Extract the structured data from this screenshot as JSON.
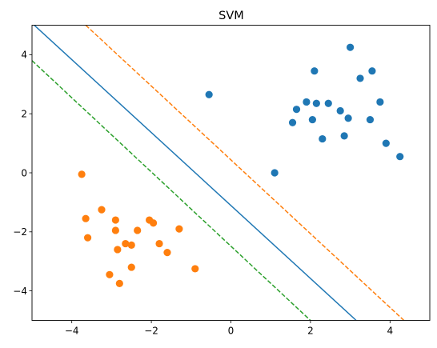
{
  "chart_data": {
    "type": "scatter",
    "title": "SVM",
    "xlabel": "",
    "ylabel": "",
    "xlim": [
      -5,
      5
    ],
    "ylim": [
      -5,
      5
    ],
    "xticks": [
      -4,
      -2,
      0,
      2,
      4
    ],
    "yticks": [
      -4,
      -2,
      0,
      2,
      4
    ],
    "x_tick_labels": [
      "−4",
      "−2",
      "0",
      "2",
      "4"
    ],
    "y_tick_labels": [
      "−4",
      "−2",
      "0",
      "2",
      "4"
    ],
    "grid": false,
    "series": [
      {
        "color": "#1f77b4",
        "points": [
          [
            -0.55,
            2.65
          ],
          [
            1.1,
            0.0
          ],
          [
            1.55,
            1.7
          ],
          [
            1.65,
            2.15
          ],
          [
            1.9,
            2.4
          ],
          [
            2.05,
            1.8
          ],
          [
            2.1,
            3.45
          ],
          [
            2.15,
            2.35
          ],
          [
            2.3,
            1.15
          ],
          [
            2.45,
            2.35
          ],
          [
            2.75,
            2.1
          ],
          [
            2.85,
            1.25
          ],
          [
            2.95,
            1.85
          ],
          [
            3.0,
            4.25
          ],
          [
            3.25,
            3.2
          ],
          [
            3.5,
            1.8
          ],
          [
            3.55,
            3.45
          ],
          [
            3.75,
            2.4
          ],
          [
            3.9,
            1.0
          ],
          [
            4.25,
            0.55
          ]
        ]
      },
      {
        "color": "#ff7f0e",
        "points": [
          [
            -3.75,
            -0.05
          ],
          [
            -3.65,
            -1.55
          ],
          [
            -3.6,
            -2.2
          ],
          [
            -3.25,
            -1.25
          ],
          [
            -3.05,
            -3.45
          ],
          [
            -2.9,
            -1.6
          ],
          [
            -2.9,
            -1.95
          ],
          [
            -2.85,
            -2.6
          ],
          [
            -2.8,
            -3.75
          ],
          [
            -2.65,
            -2.4
          ],
          [
            -2.5,
            -2.45
          ],
          [
            -2.5,
            -3.2
          ],
          [
            -2.35,
            -1.95
          ],
          [
            -2.05,
            -1.6
          ],
          [
            -1.95,
            -1.7
          ],
          [
            -1.8,
            -2.4
          ],
          [
            -1.6,
            -2.7
          ],
          [
            -1.3,
            -1.9
          ],
          [
            -0.9,
            -3.25
          ]
        ]
      }
    ],
    "lines": [
      {
        "name": "decision-boundary",
        "color": "#1f77b4",
        "dashed": false,
        "p1": [
          -5,
          5.07
        ],
        "p2": [
          3.15,
          -5
        ]
      },
      {
        "name": "upper-margin",
        "color": "#ff7f0e",
        "dashed": true,
        "p1": [
          -3.65,
          5.0
        ],
        "p2": [
          4.35,
          -5
        ]
      },
      {
        "name": "lower-margin",
        "color": "#2ca02c",
        "dashed": true,
        "p1": [
          -5,
          3.8
        ],
        "p2": [
          2.0,
          -5
        ]
      }
    ]
  }
}
